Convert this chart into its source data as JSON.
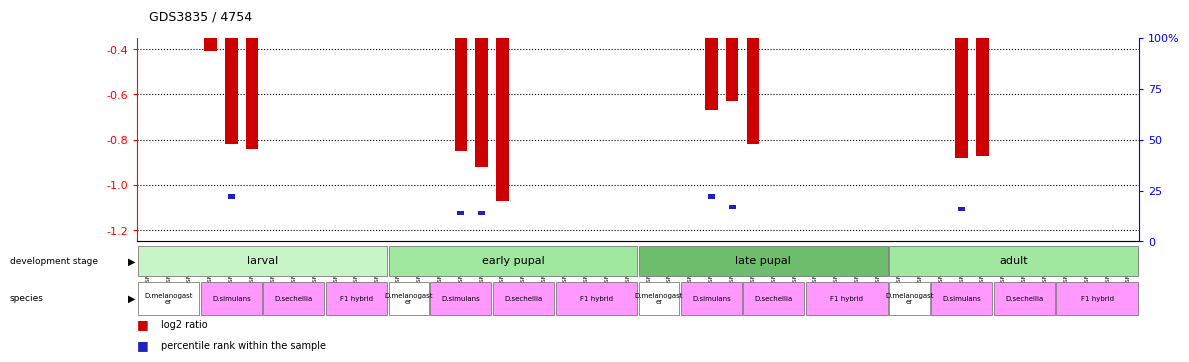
{
  "title": "GDS3835 / 4754",
  "samples": [
    "GSM435987",
    "GSM436078",
    "GSM436079",
    "GSM436091",
    "GSM436092",
    "GSM436093",
    "GSM436827",
    "GSM436828",
    "GSM436829",
    "GSM436839",
    "GSM436841",
    "GSM436842",
    "GSM436080",
    "GSM436083",
    "GSM436084",
    "GSM436094",
    "GSM436095",
    "GSM436096",
    "GSM436830",
    "GSM436831",
    "GSM436832",
    "GSM436848",
    "GSM436850",
    "GSM436852",
    "GSM436085",
    "GSM436086",
    "GSM436087",
    "GSM436097",
    "GSM436098",
    "GSM436099",
    "GSM436833",
    "GSM436834",
    "GSM436035",
    "GSM436854",
    "GSM436856",
    "GSM436857",
    "GSM436088",
    "GSM436089",
    "GSM436090",
    "GSM436100",
    "GSM436101",
    "GSM436102",
    "GSM436836",
    "GSM436837",
    "GSM436838",
    "GSM437041",
    "GSM437091",
    "GSM437092"
  ],
  "log2_ratio": [
    0.0,
    0.0,
    0.0,
    -0.41,
    -0.82,
    -0.84,
    0.0,
    0.0,
    0.0,
    0.0,
    0.0,
    0.0,
    0.0,
    0.0,
    0.0,
    -0.85,
    -0.92,
    -1.07,
    0.0,
    0.0,
    0.0,
    0.0,
    0.0,
    0.0,
    0.0,
    0.0,
    0.0,
    -0.67,
    -0.63,
    -0.82,
    0.0,
    0.0,
    0.0,
    0.0,
    0.0,
    0.0,
    0.0,
    0.0,
    0.0,
    -0.88,
    -0.87,
    0.0,
    0.0,
    0.0,
    0.0,
    0.0,
    0.0,
    0.0
  ],
  "percentile": [
    0.0,
    0.0,
    0.0,
    0.0,
    22.0,
    0.0,
    0.0,
    0.0,
    0.0,
    0.0,
    0.0,
    0.0,
    0.0,
    0.0,
    0.0,
    14.0,
    14.0,
    0.0,
    0.0,
    0.0,
    0.0,
    0.0,
    0.0,
    0.0,
    0.0,
    0.0,
    0.0,
    22.0,
    17.0,
    0.0,
    0.0,
    0.0,
    0.0,
    0.0,
    0.0,
    0.0,
    0.0,
    0.0,
    0.0,
    16.0,
    0.0,
    0.0,
    0.0,
    0.0,
    0.0,
    0.0,
    0.0,
    0.0
  ],
  "development_stages": [
    {
      "label": "larval",
      "start": 0,
      "end": 11,
      "color": "#c8f5c8"
    },
    {
      "label": "early pupal",
      "start": 12,
      "end": 23,
      "color": "#a0e8a0"
    },
    {
      "label": "late pupal",
      "start": 24,
      "end": 35,
      "color": "#6dbd6d"
    },
    {
      "label": "adult",
      "start": 36,
      "end": 47,
      "color": "#a0e8a0"
    }
  ],
  "species_groups": [
    {
      "label": "D.melanogast\ner",
      "start": 0,
      "end": 2,
      "color": "#ffffff"
    },
    {
      "label": "D.simulans",
      "start": 3,
      "end": 5,
      "color": "#ff99ff"
    },
    {
      "label": "D.sechellia",
      "start": 6,
      "end": 8,
      "color": "#ff99ff"
    },
    {
      "label": "F1 hybrid",
      "start": 9,
      "end": 11,
      "color": "#ff99ff"
    },
    {
      "label": "D.melanogast\ner",
      "start": 12,
      "end": 13,
      "color": "#ffffff"
    },
    {
      "label": "D.simulans",
      "start": 14,
      "end": 16,
      "color": "#ff99ff"
    },
    {
      "label": "D.sechellia",
      "start": 17,
      "end": 19,
      "color": "#ff99ff"
    },
    {
      "label": "F1 hybrid",
      "start": 20,
      "end": 23,
      "color": "#ff99ff"
    },
    {
      "label": "D.melanogast\ner",
      "start": 24,
      "end": 25,
      "color": "#ffffff"
    },
    {
      "label": "D.simulans",
      "start": 26,
      "end": 28,
      "color": "#ff99ff"
    },
    {
      "label": "D.sechellia",
      "start": 29,
      "end": 31,
      "color": "#ff99ff"
    },
    {
      "label": "F1 hybrid",
      "start": 32,
      "end": 35,
      "color": "#ff99ff"
    },
    {
      "label": "D.melanogast\ner",
      "start": 36,
      "end": 37,
      "color": "#ffffff"
    },
    {
      "label": "D.simulans",
      "start": 38,
      "end": 40,
      "color": "#ff99ff"
    },
    {
      "label": "D.sechellia",
      "start": 41,
      "end": 43,
      "color": "#ff99ff"
    },
    {
      "label": "F1 hybrid",
      "start": 44,
      "end": 47,
      "color": "#ff99ff"
    }
  ],
  "ymin": -1.25,
  "ymax": -0.35,
  "yticks_left": [
    -1.2,
    -1.0,
    -0.8,
    -0.6,
    -0.4
  ],
  "yticks_right": [
    0,
    25,
    50,
    75,
    100
  ],
  "bar_color_log2": "#cc0000",
  "bar_color_pct": "#2222bb",
  "bar_width": 0.6
}
